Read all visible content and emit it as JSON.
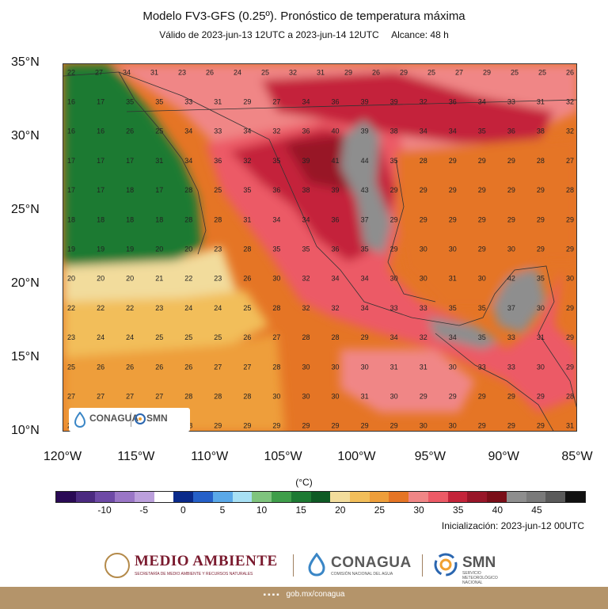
{
  "title": "Modelo FV3-GFS (0.25º). Pronóstico de temperatura máxima",
  "valid": "Válido de 2023-jun-13 12UTC a 2023-jun-14 12UTC",
  "range": "Alcance: 48 h",
  "init": "Inicialización: 2023-jun-12 00UTC",
  "unit": "(°C)",
  "map": {
    "lon_range": [
      -120,
      -85
    ],
    "lat_range": [
      10,
      35
    ],
    "lat_labels": [
      "35°N",
      "30°N",
      "25°N",
      "20°N",
      "15°N",
      "10°N"
    ],
    "lon_labels": [
      "120°W",
      "115°W",
      "110°W",
      "105°W",
      "100°W",
      "95°W",
      "90°W",
      "85°W"
    ],
    "temperature_rows": [
      {
        "lat": 34.5,
        "values": [
          "22",
          "27",
          "34",
          "31",
          "23",
          "26",
          "24",
          "25",
          "32",
          "31",
          "29",
          "26",
          "29",
          "25",
          "27",
          "29",
          "25",
          "25",
          "26"
        ]
      },
      {
        "lat": 32.5,
        "values": [
          "16",
          "17",
          "35",
          "35",
          "33",
          "31",
          "29",
          "27",
          "34",
          "36",
          "39",
          "39",
          "32",
          "36",
          "34",
          "33",
          "31",
          "32"
        ]
      },
      {
        "lat": 30.5,
        "values": [
          "16",
          "16",
          "26",
          "25",
          "34",
          "33",
          "34",
          "32",
          "36",
          "40",
          "39",
          "38",
          "34",
          "34",
          "35",
          "36",
          "38",
          "32"
        ]
      },
      {
        "lat": 28.5,
        "values": [
          "17",
          "17",
          "17",
          "31",
          "34",
          "36",
          "32",
          "35",
          "39",
          "41",
          "44",
          "35",
          "28",
          "29",
          "29",
          "29",
          "28",
          "27"
        ]
      },
      {
        "lat": 26.5,
        "values": [
          "17",
          "17",
          "18",
          "17",
          "28",
          "25",
          "35",
          "36",
          "38",
          "39",
          "43",
          "29",
          "29",
          "29",
          "29",
          "29",
          "29",
          "28"
        ]
      },
      {
        "lat": 24.5,
        "values": [
          "18",
          "18",
          "18",
          "18",
          "28",
          "28",
          "31",
          "34",
          "34",
          "36",
          "37",
          "29",
          "29",
          "29",
          "29",
          "29",
          "29",
          "29"
        ]
      },
      {
        "lat": 22.5,
        "values": [
          "19",
          "19",
          "19",
          "20",
          "20",
          "23",
          "28",
          "35",
          "35",
          "36",
          "35",
          "29",
          "30",
          "30",
          "29",
          "30",
          "29",
          "29"
        ]
      },
      {
        "lat": 20.5,
        "values": [
          "20",
          "20",
          "20",
          "21",
          "22",
          "23",
          "26",
          "30",
          "32",
          "34",
          "34",
          "30",
          "30",
          "31",
          "30",
          "42",
          "35",
          "30"
        ]
      },
      {
        "lat": 18.5,
        "values": [
          "22",
          "22",
          "22",
          "23",
          "24",
          "24",
          "25",
          "28",
          "32",
          "32",
          "34",
          "33",
          "33",
          "35",
          "35",
          "37",
          "30",
          "29"
        ]
      },
      {
        "lat": 16.5,
        "values": [
          "23",
          "24",
          "24",
          "25",
          "25",
          "25",
          "26",
          "27",
          "28",
          "28",
          "29",
          "34",
          "32",
          "34",
          "35",
          "33",
          "31",
          "29"
        ]
      },
      {
        "lat": 14.5,
        "values": [
          "25",
          "26",
          "26",
          "26",
          "26",
          "27",
          "27",
          "28",
          "30",
          "30",
          "30",
          "31",
          "31",
          "30",
          "33",
          "33",
          "30",
          "29"
        ]
      },
      {
        "lat": 12.5,
        "values": [
          "27",
          "27",
          "27",
          "27",
          "28",
          "28",
          "28",
          "30",
          "30",
          "30",
          "31",
          "30",
          "29",
          "29",
          "29",
          "29",
          "29",
          "28"
        ]
      },
      {
        "lat": 10.5,
        "values": [
          "28",
          "28",
          "28",
          "28",
          "28",
          "29",
          "29",
          "29",
          "29",
          "29",
          "29",
          "29",
          "30",
          "30",
          "29",
          "29",
          "29",
          "31"
        ]
      }
    ]
  },
  "colorbar": {
    "colors": [
      "#2a0a55",
      "#4b2a80",
      "#6e4aa6",
      "#9a76c6",
      "#bca0dc",
      "#ffffff",
      "#0a2a8a",
      "#2560c8",
      "#5aa8e8",
      "#a8e0f4",
      "#7fc47e",
      "#3f9e4a",
      "#1d7a33",
      "#0e5a24",
      "#f2dc9c",
      "#f2be5a",
      "#ee9e3a",
      "#e57525",
      "#f08686",
      "#ec5a66",
      "#c4243a",
      "#981628",
      "#7a0e18",
      "#8e8e8e",
      "#7a7a7a",
      "#5a5a5a",
      "#111111"
    ],
    "tick_labels": [
      "-10",
      "-5",
      "0",
      "5",
      "10",
      "15",
      "20",
      "25",
      "30",
      "35",
      "40",
      "45"
    ]
  },
  "logos": {
    "conagua_small": "CONAGUA",
    "smn_small": "SMN",
    "medio_ambiente": "MEDIO AMBIENTE",
    "medio_ambiente_sub": "SECRETARÍA DE MEDIO AMBIENTE Y RECURSOS NATURALES",
    "conagua": "CONAGUA",
    "conagua_sub": "COMISIÓN NACIONAL DEL AGUA",
    "smn": "SMN",
    "smn_sub": "SERVICIO METEOROLÓGICO NACIONAL"
  },
  "footer": {
    "social_icons": [
      "facebook-icon",
      "twitter-icon",
      "instagram-icon",
      "youtube-icon"
    ],
    "url": "gob.mx/conagua"
  },
  "accent_colors": {
    "footer_bar": "#b4946a",
    "medio_ambiente_text": "#7a1a2e"
  }
}
